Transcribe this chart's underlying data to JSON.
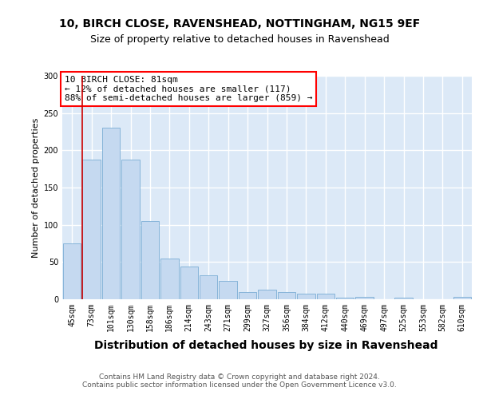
{
  "title1": "10, BIRCH CLOSE, RAVENSHEAD, NOTTINGHAM, NG15 9EF",
  "title2": "Size of property relative to detached houses in Ravenshead",
  "xlabel": "Distribution of detached houses by size in Ravenshead",
  "ylabel": "Number of detached properties",
  "bar_labels": [
    "45sqm",
    "73sqm",
    "101sqm",
    "130sqm",
    "158sqm",
    "186sqm",
    "214sqm",
    "243sqm",
    "271sqm",
    "299sqm",
    "327sqm",
    "356sqm",
    "384sqm",
    "412sqm",
    "440sqm",
    "469sqm",
    "497sqm",
    "525sqm",
    "553sqm",
    "582sqm",
    "610sqm"
  ],
  "bar_values": [
    75,
    188,
    230,
    188,
    105,
    55,
    44,
    32,
    25,
    10,
    13,
    10,
    8,
    7,
    2,
    3,
    0,
    2,
    0,
    0,
    3
  ],
  "bar_color": "#c5d9f0",
  "bar_edge_color": "#7aadd4",
  "annotation_line1": "10 BIRCH CLOSE: 81sqm",
  "annotation_line2": "← 12% of detached houses are smaller (117)",
  "annotation_line3": "88% of semi-detached houses are larger (859) →",
  "vline_color": "#cc0000",
  "footer_text": "Contains HM Land Registry data © Crown copyright and database right 2024.\nContains public sector information licensed under the Open Government Licence v3.0.",
  "ylim": [
    0,
    300
  ],
  "plot_bg_color": "#dce9f7",
  "grid_color": "white",
  "title1_fontsize": 10,
  "title2_fontsize": 9,
  "xlabel_fontsize": 10,
  "ylabel_fontsize": 8,
  "tick_fontsize": 7,
  "footer_fontsize": 6.5,
  "annotation_fontsize": 8
}
